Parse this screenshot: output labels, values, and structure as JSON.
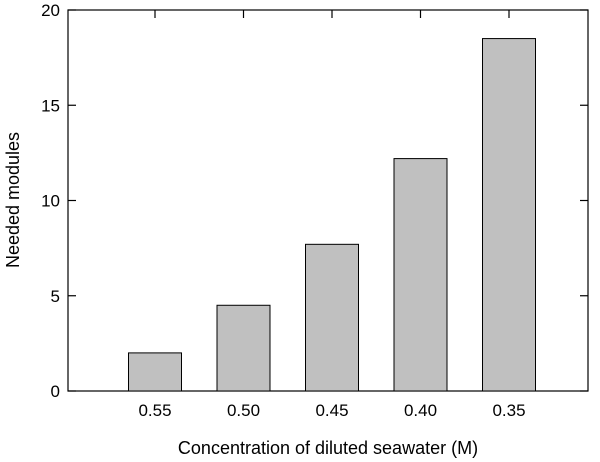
{
  "chart_data": {
    "type": "bar",
    "categories": [
      "0.55",
      "0.50",
      "0.45",
      "0.40",
      "0.35"
    ],
    "values": [
      2.0,
      4.5,
      7.7,
      12.2,
      18.5
    ],
    "title": "",
    "xlabel": "Concentration of diluted seawater (M)",
    "ylabel": "Needed modules",
    "ylim": [
      0,
      20
    ],
    "yticks": [
      0,
      5,
      10,
      15,
      20
    ],
    "grid": false,
    "legend": "none",
    "bar_color": "#c0c0c0",
    "bar_edge_color": "#000000",
    "axis_color": "#000000"
  }
}
